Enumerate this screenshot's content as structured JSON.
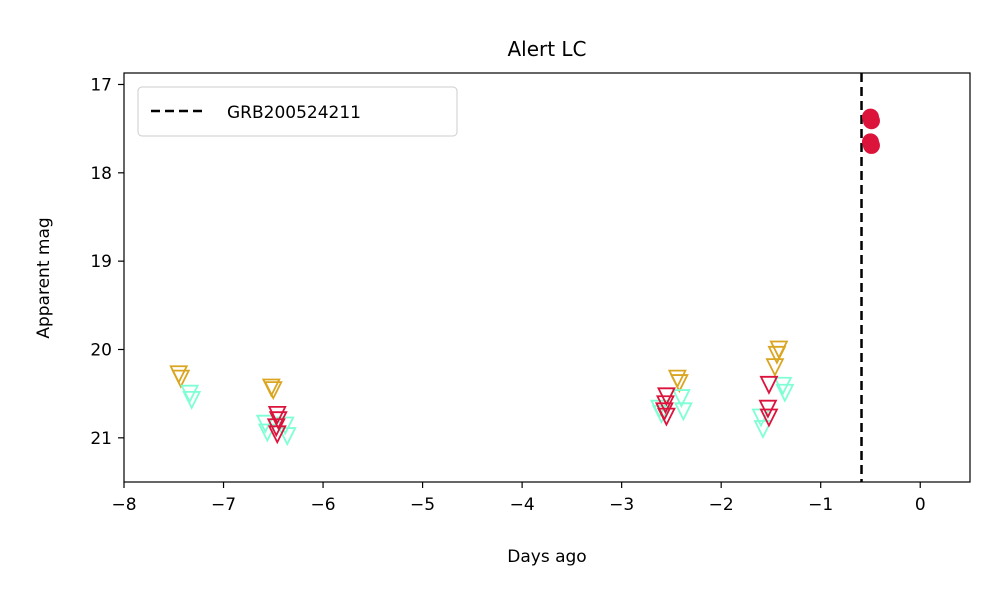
{
  "chart_data": {
    "type": "scatter",
    "title": "Alert LC",
    "xlabel": "Days ago",
    "ylabel": "Apparent mag",
    "xlim": [
      -8,
      0.5
    ],
    "ylim": [
      21.5,
      16.87
    ],
    "y_inverted": true,
    "grid": false,
    "legend_placement": "top-left",
    "x_ticks": [
      -8,
      -7,
      -6,
      -5,
      -4,
      -3,
      -2,
      -1,
      0
    ],
    "x_tick_labels": [
      "−8",
      "−7",
      "−6",
      "−5",
      "−4",
      "−3",
      "−2",
      "−1",
      "0"
    ],
    "y_ticks": [
      17,
      18,
      19,
      20,
      21
    ],
    "y_tick_labels": [
      "17",
      "18",
      "19",
      "20",
      "21"
    ],
    "event_line": {
      "label": "GRB200524211",
      "x": -0.59,
      "style": "dashed",
      "color": "#000000"
    },
    "series": [
      {
        "color": "#DAA520",
        "marker": "open-triangle-down",
        "points": [
          {
            "x": -7.45,
            "y": 20.28
          },
          {
            "x": -7.43,
            "y": 20.33
          },
          {
            "x": -6.52,
            "y": 20.43
          },
          {
            "x": -6.5,
            "y": 20.46
          },
          {
            "x": -2.44,
            "y": 20.33
          },
          {
            "x": -2.42,
            "y": 20.38
          },
          {
            "x": -1.42,
            "y": 20.0
          },
          {
            "x": -1.44,
            "y": 20.06
          },
          {
            "x": -1.46,
            "y": 20.2
          }
        ]
      },
      {
        "color": "#7FFFD4",
        "marker": "open-triangle-down",
        "points": [
          {
            "x": -7.34,
            "y": 20.5
          },
          {
            "x": -7.32,
            "y": 20.57
          },
          {
            "x": -6.58,
            "y": 20.84
          },
          {
            "x": -6.56,
            "y": 20.94
          },
          {
            "x": -6.38,
            "y": 20.86
          },
          {
            "x": -6.36,
            "y": 20.98
          },
          {
            "x": -2.62,
            "y": 20.67
          },
          {
            "x": -2.6,
            "y": 20.73
          },
          {
            "x": -2.4,
            "y": 20.55
          },
          {
            "x": -2.38,
            "y": 20.7
          },
          {
            "x": -1.6,
            "y": 20.77
          },
          {
            "x": -1.58,
            "y": 20.9
          },
          {
            "x": -1.38,
            "y": 20.41
          },
          {
            "x": -1.36,
            "y": 20.49
          }
        ]
      },
      {
        "color": "#DC143C",
        "marker": "open-triangle-down",
        "points": [
          {
            "x": -6.46,
            "y": 20.74
          },
          {
            "x": -6.45,
            "y": 20.8
          },
          {
            "x": -6.47,
            "y": 20.88
          },
          {
            "x": -6.46,
            "y": 20.96
          },
          {
            "x": -2.55,
            "y": 20.53
          },
          {
            "x": -2.56,
            "y": 20.62
          },
          {
            "x": -2.57,
            "y": 20.7
          },
          {
            "x": -2.55,
            "y": 20.76
          },
          {
            "x": -1.52,
            "y": 20.4
          },
          {
            "x": -1.53,
            "y": 20.67
          },
          {
            "x": -1.52,
            "y": 20.77
          }
        ]
      },
      {
        "color": "#DC143C",
        "marker": "filled-circle",
        "points": [
          {
            "x": -0.5,
            "y": 17.37
          },
          {
            "x": -0.49,
            "y": 17.41
          },
          {
            "x": -0.5,
            "y": 17.65
          },
          {
            "x": -0.49,
            "y": 17.69
          }
        ]
      }
    ]
  }
}
